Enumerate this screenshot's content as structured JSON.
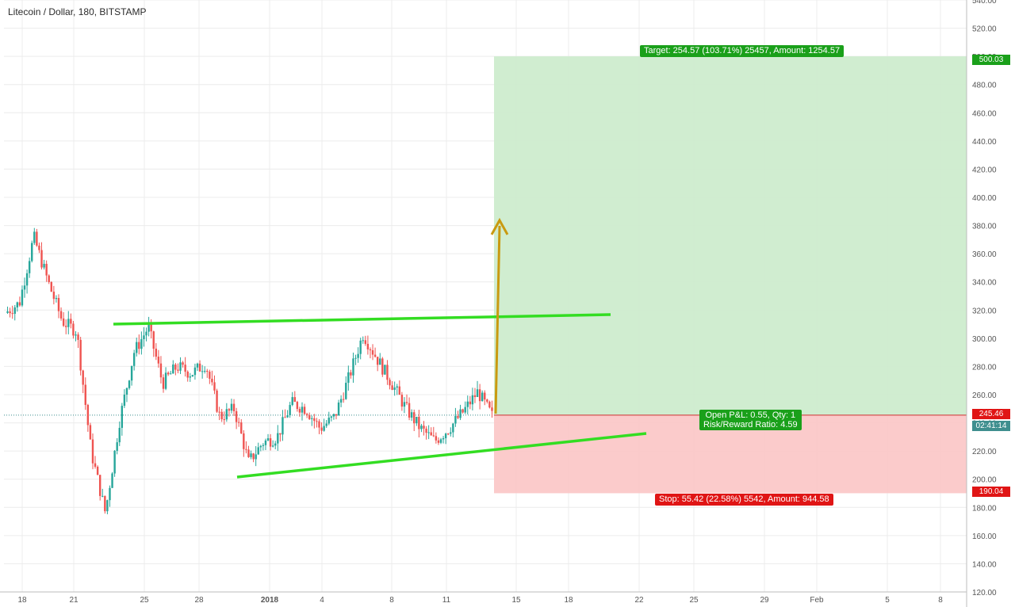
{
  "header": {
    "symbol": "Litecoin / Dollar",
    "interval": "180",
    "exchange": "BITSTAMP"
  },
  "chart_data": {
    "type": "candlestick",
    "y_range": [
      120,
      540
    ],
    "y_ticks": [
      "540.00",
      "520.00",
      "500.00",
      "480.00",
      "460.00",
      "440.00",
      "420.00",
      "400.00",
      "380.00",
      "360.00",
      "340.00",
      "320.00",
      "300.00",
      "280.00",
      "260.00",
      "240.00",
      "220.00",
      "200.00",
      "180.00",
      "160.00",
      "140.00",
      "120.00"
    ],
    "x_ticks": [
      "18",
      "21",
      "25",
      "28",
      "2018",
      "4",
      "8",
      "11",
      "15",
      "18",
      "22",
      "25",
      "29",
      "Feb",
      "5",
      "8"
    ],
    "price_path": [
      {
        "t": "17 Dec",
        "p": 318
      },
      {
        "t": "18 Dec",
        "p": 325
      },
      {
        "t": "19 Dec",
        "p": 372
      },
      {
        "t": "20 Dec",
        "p": 340
      },
      {
        "t": "20 Dec",
        "p": 312
      },
      {
        "t": "21 Dec",
        "p": 305
      },
      {
        "t": "22 Dec",
        "p": 220
      },
      {
        "t": "22 Dec",
        "p": 176
      },
      {
        "t": "22 Dec",
        "p": 242
      },
      {
        "t": "23 Dec",
        "p": 290
      },
      {
        "t": "23 Dec",
        "p": 308
      },
      {
        "t": "24 Dec",
        "p": 268
      },
      {
        "t": "25 Dec",
        "p": 280
      },
      {
        "t": "26 Dec",
        "p": 275
      },
      {
        "t": "27 Dec",
        "p": 282
      },
      {
        "t": "28 Dec",
        "p": 244
      },
      {
        "t": "29 Dec",
        "p": 250
      },
      {
        "t": "30 Dec",
        "p": 212
      },
      {
        "t": "31 Dec",
        "p": 226
      },
      {
        "t": "1 Jan",
        "p": 230
      },
      {
        "t": "2 Jan",
        "p": 254
      },
      {
        "t": "3 Jan",
        "p": 250
      },
      {
        "t": "4 Jan",
        "p": 236
      },
      {
        "t": "5 Jan",
        "p": 244
      },
      {
        "t": "6 Jan",
        "p": 272
      },
      {
        "t": "6 Jan",
        "p": 303
      },
      {
        "t": "7 Jan",
        "p": 285
      },
      {
        "t": "8 Jan",
        "p": 268
      },
      {
        "t": "9 Jan",
        "p": 250
      },
      {
        "t": "10 Jan",
        "p": 236
      },
      {
        "t": "11 Jan",
        "p": 227
      },
      {
        "t": "12 Jan",
        "p": 236
      },
      {
        "t": "13 Jan",
        "p": 248
      },
      {
        "t": "14 Jan",
        "p": 262
      },
      {
        "t": "14 Jan",
        "p": 245
      }
    ],
    "position": {
      "entry": 245.46,
      "target": 500.03,
      "stop": 190.04,
      "target_label": "Target: 254.57 (103.71%) 25457, Amount: 1254.57",
      "stop_label": "Stop: 55.42 (22.58%) 5542, Amount: 944.58",
      "pnl_label": "Open P&L: 0.55, Qty: 1",
      "rr_label": "Risk/Reward Ratio: 4.59",
      "entry_tag": "245.46",
      "target_tag": "500.03",
      "stop_tag": "190.04",
      "countdown": "02:41:14"
    },
    "colors": {
      "up": "#26a69a",
      "down": "#ef5350",
      "profit_zone": "#cdeccd",
      "loss_zone": "#fbc8c8",
      "trendline": "#33dd22",
      "arrow": "#c99a10"
    }
  }
}
